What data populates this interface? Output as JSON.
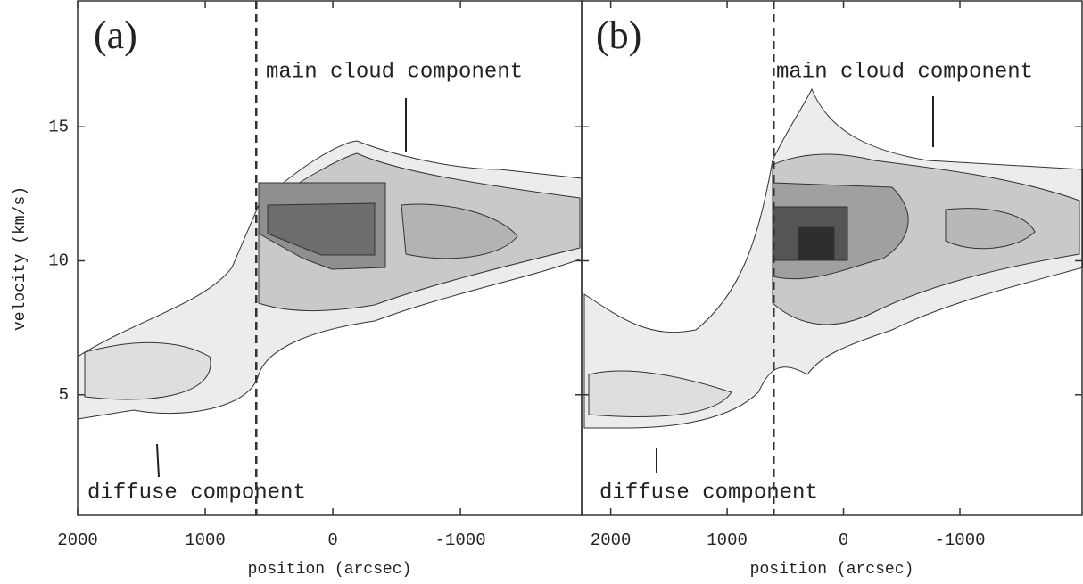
{
  "chart_data": [
    {
      "type": "contour",
      "panel_label": "(a)",
      "xlabel": "position (arcsec)",
      "ylabel": "velocity (km/s)",
      "xlim": [
        2000,
        -1950
      ],
      "xticks": [
        2000,
        1000,
        0,
        -1000
      ],
      "ylim": [
        0.5,
        19.7
      ],
      "yticks": [
        5,
        10,
        15
      ],
      "vline": 600,
      "annotations": [
        "main cloud component",
        "diffuse component"
      ]
    },
    {
      "type": "contour",
      "panel_label": "(b)",
      "xlabel": "position (arcsec)",
      "xlim": [
        2250,
        -2050
      ],
      "xticks": [
        2000,
        1000,
        0,
        -1000
      ],
      "ylim": [
        0.5,
        19.7
      ],
      "vline": 600,
      "annotations": [
        "main cloud component",
        "diffuse component"
      ]
    }
  ]
}
